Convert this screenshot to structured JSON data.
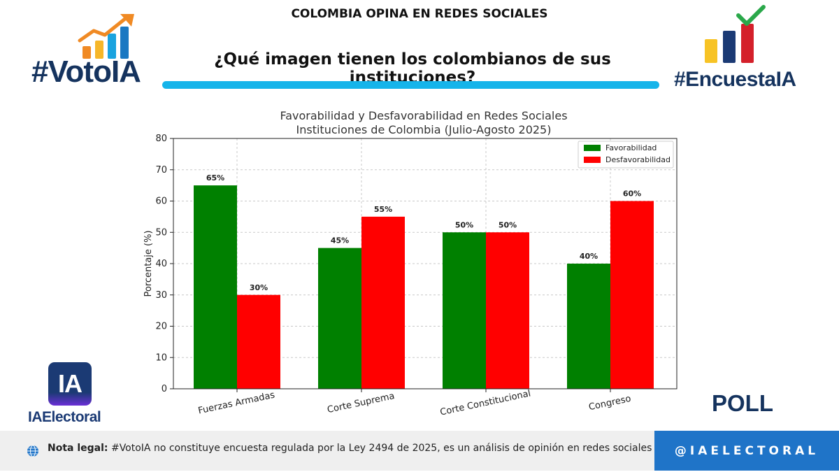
{
  "header": {
    "kicker": "COLOMBIA OPINA EN REDES SOCIALES",
    "title": "¿Qué imagen tienen los colombianos de sus instituciones?"
  },
  "logos": {
    "left_hashtag": "#VotoIA",
    "right_hashtag": "#EncuestaIA",
    "ia_badge": "IA",
    "ia_brand": "IAElectoral",
    "poll": "POLL"
  },
  "footer": {
    "note_label": "Nota legal:",
    "note_text": " #VotoIA no constituye encuesta regulada por la Ley 2494 de 2025, es un análisis de opinión en redes sociales con IA.",
    "handle": "@IAELECTORAL"
  },
  "colors": {
    "favorable": "#008000",
    "unfavorable": "#ff0000",
    "accent_bar": "#15b4ea",
    "brand_navy": "#15335e",
    "handle_bg": "#1f74c8"
  },
  "chart_data": {
    "type": "bar",
    "title": "Favorabilidad y Desfavorabilidad en Redes Sociales",
    "subtitle": "Instituciones de Colombia (Julio-Agosto 2025)",
    "ylabel": "Porcentaje (%)",
    "xlabel": "",
    "ylim": [
      0,
      80
    ],
    "yticks": [
      0,
      10,
      20,
      30,
      40,
      50,
      60,
      70,
      80
    ],
    "categories": [
      "Fuerzas Armadas",
      "Corte Suprema",
      "Corte Constitucional",
      "Congreso"
    ],
    "series": [
      {
        "name": "Favorabilidad",
        "values": [
          65,
          45,
          50,
          40
        ],
        "labels": [
          "65%",
          "45%",
          "50%",
          "40%"
        ]
      },
      {
        "name": "Desfavorabilidad",
        "values": [
          30,
          55,
          50,
          60
        ],
        "labels": [
          "30%",
          "55%",
          "50%",
          "60%"
        ]
      }
    ],
    "legend": "top-right",
    "grid": true
  }
}
